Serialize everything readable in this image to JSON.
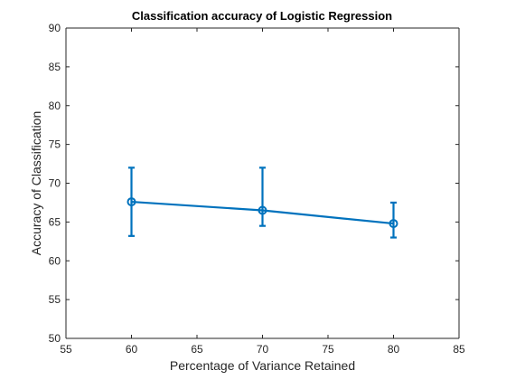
{
  "chart_data": {
    "type": "line",
    "title": "Classification accuracy of Logistic Regression",
    "xlabel": "Percentage of Variance Retained",
    "ylabel": "Accuracy of Classification",
    "xlim": [
      55,
      85
    ],
    "ylim": [
      50,
      90
    ],
    "xticks": [
      55,
      60,
      65,
      70,
      75,
      80,
      85
    ],
    "yticks": [
      50,
      55,
      60,
      65,
      70,
      75,
      80,
      85,
      90
    ],
    "grid": false,
    "legend": "none",
    "series": [
      {
        "x": [
          60,
          70,
          80
        ],
        "y": [
          67.6,
          66.5,
          64.8
        ],
        "err_low": [
          63.2,
          64.5,
          63.0
        ],
        "err_high": [
          72.0,
          72.0,
          67.5
        ],
        "marker": "circle",
        "color": "#0072BD"
      }
    ]
  }
}
